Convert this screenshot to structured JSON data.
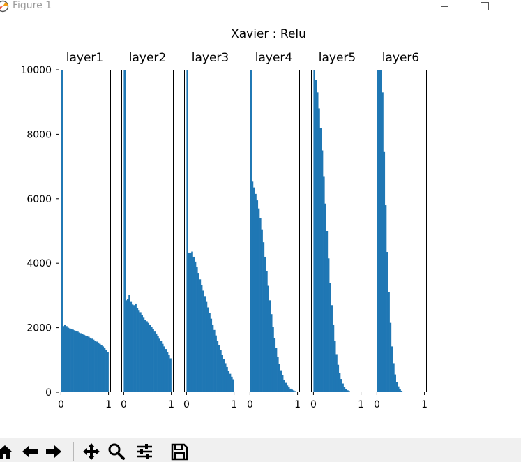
{
  "window": {
    "title": "Figure 1"
  },
  "toolbar": {
    "buttons": [
      "home-icon",
      "back-arrow-icon",
      "forward-arrow-icon",
      "pan-icon",
      "zoom-icon",
      "configure-subplots-icon",
      "save-icon"
    ]
  },
  "chart_data": {
    "type": "bar",
    "title": "Xavier : Relu",
    "bar_color": "#1f77b4",
    "ylim": [
      0,
      10000
    ],
    "yticks": [
      0,
      2000,
      4000,
      6000,
      8000,
      10000
    ],
    "xlim": [
      -0.05,
      1.05
    ],
    "xticks": [
      0,
      1
    ],
    "bins": 30,
    "bin_range": [
      0,
      1
    ],
    "series": [
      {
        "name": "layer1",
        "values": [
          10000,
          2050,
          2100,
          2050,
          2000,
          1980,
          1970,
          1940,
          1920,
          1900,
          1880,
          1850,
          1830,
          1800,
          1780,
          1760,
          1740,
          1720,
          1690,
          1660,
          1630,
          1600,
          1570,
          1540,
          1500,
          1460,
          1420,
          1380,
          1320,
          1250
        ]
      },
      {
        "name": "layer2",
        "values": [
          10000,
          2850,
          2900,
          3020,
          2800,
          2720,
          2700,
          2750,
          2600,
          2550,
          2480,
          2400,
          2330,
          2250,
          2200,
          2150,
          2080,
          2020,
          1950,
          1880,
          1820,
          1740,
          1660,
          1580,
          1500,
          1420,
          1340,
          1250,
          1150,
          1050
        ]
      },
      {
        "name": "layer3",
        "values": [
          10000,
          4330,
          4330,
          4360,
          4200,
          4050,
          3880,
          3700,
          3500,
          3320,
          3150,
          2980,
          2800,
          2630,
          2450,
          2280,
          2100,
          1930,
          1760,
          1600,
          1450,
          1300,
          1160,
          1030,
          900,
          780,
          670,
          570,
          480,
          400
        ]
      },
      {
        "name": "layer4",
        "values": [
          10000,
          6530,
          6350,
          6150,
          5950,
          5700,
          5400,
          5050,
          4650,
          4200,
          3750,
          3300,
          2850,
          2420,
          2030,
          1680,
          1370,
          1100,
          870,
          680,
          520,
          390,
          290,
          210,
          150,
          110,
          80,
          55,
          35,
          20
        ]
      },
      {
        "name": "layer5",
        "values": [
          10000,
          9680,
          9300,
          8800,
          8200,
          7500,
          6700,
          5850,
          5000,
          4150,
          3380,
          2700,
          2100,
          1600,
          1180,
          850,
          600,
          410,
          270,
          170,
          105,
          60,
          35,
          20,
          12,
          7,
          4,
          2,
          1,
          0
        ]
      },
      {
        "name": "layer6",
        "values": [
          10000,
          10000,
          10000,
          9300,
          7450,
          5800,
          4350,
          3100,
          2150,
          1420,
          900,
          550,
          320,
          180,
          95,
          45,
          22,
          10,
          5,
          2,
          1,
          0,
          0,
          0,
          0,
          0,
          0,
          0,
          0,
          0
        ]
      }
    ]
  }
}
